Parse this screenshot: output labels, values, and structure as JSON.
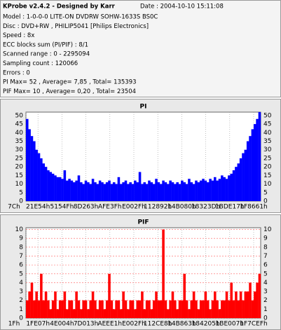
{
  "header": {
    "title": "KProbe v2.4.2 - Designed by Karr",
    "date": "Date : 2004-10-10 15:11:08",
    "lines": [
      "Model : 1-0-0-0 LITE-ON DVDRW SOHW-1633S BS0C",
      "Disc : DVD+RW , PHILIP5041 [Philips Electronics]",
      "Speed : 8x",
      "ECC blocks sum (PI/PIF) : 8/1",
      "Scanned range : 0 - 2295094",
      "Sampling count : 120066",
      "Errors : 0",
      "PI Max= 52 , Average= 7,85 , Total= 135393",
      "PIF Max= 10 , Average= 0,20 , Total= 23504"
    ]
  },
  "chart_data": [
    {
      "type": "bar",
      "title": "PI",
      "color": "#0000ff",
      "xtick_labels": [
        "7Ch",
        "21E54h",
        "5154Fh",
        "8D263h",
        "AFE3Fh",
        "E002Fh",
        "112892h",
        "14B080h",
        "18323Dh",
        "1BDE17h",
        "1F8661h"
      ],
      "values": [
        48,
        42,
        38,
        35,
        30,
        28,
        25,
        22,
        20,
        18,
        17,
        16,
        15,
        14,
        14,
        13,
        18,
        12,
        13,
        12,
        11,
        12,
        15,
        11,
        10,
        12,
        11,
        10,
        13,
        11,
        10,
        12,
        11,
        10,
        11,
        12,
        10,
        11,
        10,
        14,
        10,
        11,
        12,
        10,
        11,
        10,
        12,
        11,
        17,
        10,
        11,
        10,
        12,
        11,
        10,
        13,
        11,
        10,
        12,
        11,
        10,
        12,
        11,
        10,
        11,
        10,
        12,
        11,
        10,
        13,
        11,
        10,
        12,
        11,
        12,
        13,
        12,
        11,
        13,
        12,
        14,
        12,
        13,
        15,
        14,
        13,
        15,
        16,
        18,
        20,
        22,
        25,
        28,
        30,
        35,
        38,
        42,
        45,
        48,
        52
      ],
      "ylim": [
        0,
        52
      ],
      "yticks": [
        0,
        5,
        10,
        15,
        20,
        25,
        30,
        35,
        40,
        45,
        50
      ],
      "horizontal_grid": false
    },
    {
      "type": "bar",
      "title": "PIF",
      "color": "#ff0000",
      "xtick_labels": [
        "1Fh",
        "1FE07h",
        "4E004h",
        "7D013h",
        "AEEE1h",
        "E002Fh",
        "112CE8h",
        "14B863h",
        "184205h",
        "1BE007h",
        "1F7CEFh"
      ],
      "values": [
        2,
        3,
        4,
        2,
        3,
        2,
        5,
        2,
        3,
        2,
        1,
        2,
        3,
        1,
        2,
        2,
        3,
        1,
        2,
        2,
        1,
        3,
        2,
        1,
        2,
        2,
        1,
        2,
        3,
        2,
        1,
        2,
        2,
        1,
        2,
        5,
        2,
        1,
        2,
        2,
        1,
        3,
        2,
        1,
        2,
        2,
        1,
        2,
        2,
        3,
        1,
        2,
        2,
        1,
        2,
        3,
        2,
        2,
        10,
        2,
        1,
        2,
        3,
        2,
        1,
        2,
        2,
        5,
        2,
        1,
        2,
        3,
        2,
        1,
        2,
        2,
        3,
        2,
        1,
        2,
        3,
        2,
        1,
        2,
        2,
        3,
        2,
        4,
        2,
        3,
        2,
        3,
        2,
        3,
        3,
        4,
        2,
        3,
        4,
        5
      ],
      "ylim": [
        0,
        10.2
      ],
      "yticks": [
        0,
        1,
        2,
        3,
        4,
        5,
        6,
        7,
        8,
        9,
        10
      ],
      "horizontal_grid": true
    }
  ]
}
